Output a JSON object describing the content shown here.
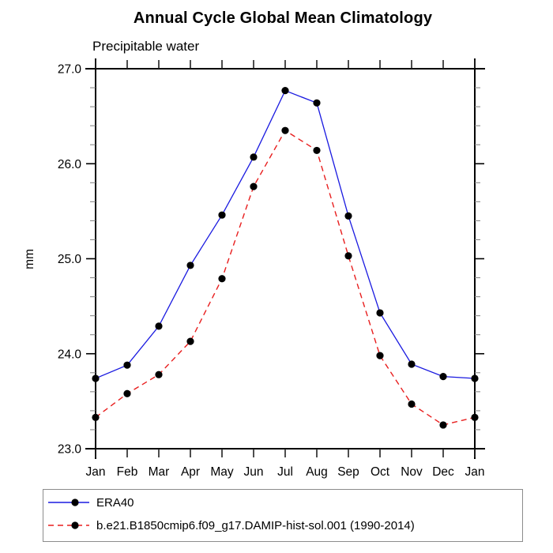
{
  "title": "Annual Cycle Global Mean Climatology",
  "subtitle": "Precipitable water",
  "colors": {
    "axis": "#000000",
    "minor_tick": "#888888",
    "tick": "#222222",
    "marker": "#000000",
    "legend_border": "#8c8c8c",
    "background": "#ffffff",
    "era40_blue": "#1a1ae0",
    "model_red": "#e81e1e"
  },
  "chart_data": {
    "type": "line",
    "title": "Annual Cycle Global Mean Climatology",
    "subtitle": "Precipitable water",
    "xlabel": "",
    "ylabel": "mm",
    "ylim": [
      23.0,
      27.0
    ],
    "ytick_major_interval": 1.0,
    "ytick_minor_interval": 0.2,
    "ytick_labels": [
      "23.0",
      "24.0",
      "25.0",
      "26.0",
      "27.0"
    ],
    "grid": false,
    "legend_position": "boxed-below-left",
    "categories": [
      "Jan",
      "Feb",
      "Mar",
      "Apr",
      "May",
      "Jun",
      "Jul",
      "Aug",
      "Sep",
      "Oct",
      "Nov",
      "Dec",
      "Jan"
    ],
    "series": [
      {
        "name": "ERA40",
        "color": "#1a1ae0",
        "line_style": "solid",
        "marker": "filled-black-circle",
        "values": [
          23.74,
          23.88,
          24.29,
          24.93,
          25.46,
          26.07,
          26.77,
          26.64,
          25.45,
          24.43,
          23.89,
          23.76,
          23.74
        ]
      },
      {
        "name": "b.e21.B1850cmip6.f09_g17.DAMIP-hist-sol.001 (1990-2014)",
        "color": "#e81e1e",
        "line_style": "dashed",
        "marker": "filled-black-circle",
        "values": [
          23.33,
          23.58,
          23.78,
          24.13,
          24.79,
          25.76,
          26.35,
          26.14,
          25.03,
          23.98,
          23.47,
          23.25,
          23.33
        ]
      }
    ]
  }
}
